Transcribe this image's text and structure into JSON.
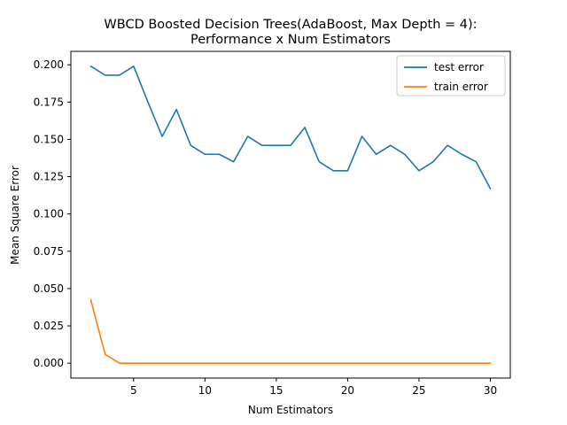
{
  "chart_data": {
    "type": "line",
    "title": "WBCD Boosted Decision Trees(AdaBoost, Max Depth = 4):",
    "subtitle": "Performance x Num Estimators",
    "xlabel": "Num Estimators",
    "ylabel": "Mean Square Error",
    "xlim": [
      0.6,
      31.4
    ],
    "ylim": [
      -0.01,
      0.209
    ],
    "xticks": [
      5,
      10,
      15,
      20,
      25,
      30
    ],
    "xtick_labels": [
      "5",
      "10",
      "15",
      "20",
      "25",
      "30"
    ],
    "yticks": [
      0.0,
      0.025,
      0.05,
      0.075,
      0.1,
      0.125,
      0.15,
      0.175,
      0.2
    ],
    "ytick_labels": [
      "0.000",
      "0.025",
      "0.050",
      "0.075",
      "0.100",
      "0.125",
      "0.150",
      "0.175",
      "0.200"
    ],
    "grid": false,
    "legend_position": "top-right",
    "x": [
      2,
      3,
      4,
      5,
      6,
      7,
      8,
      9,
      10,
      11,
      12,
      13,
      14,
      15,
      16,
      17,
      18,
      19,
      20,
      21,
      22,
      23,
      24,
      25,
      26,
      27,
      28,
      29,
      30
    ],
    "series": [
      {
        "name": "test error",
        "color": "#1f77b4",
        "values": [
          0.199,
          0.193,
          0.193,
          0.199,
          0.175,
          0.152,
          0.17,
          0.146,
          0.14,
          0.14,
          0.135,
          0.152,
          0.146,
          0.146,
          0.146,
          0.158,
          0.135,
          0.129,
          0.129,
          0.152,
          0.14,
          0.146,
          0.14,
          0.129,
          0.135,
          0.146,
          0.14,
          0.135,
          0.117
        ]
      },
      {
        "name": "train error",
        "color": "#ff7f0e",
        "values": [
          0.0423,
          0.0059,
          0.0,
          0.0,
          0.0,
          0.0,
          0.0,
          0.0,
          0.0,
          0.0,
          0.0,
          0.0,
          0.0,
          0.0,
          0.0,
          0.0,
          0.0,
          0.0,
          0.0,
          0.0,
          0.0,
          0.0,
          0.0,
          0.0,
          0.0,
          0.0,
          0.0,
          0.0,
          0.0
        ]
      }
    ]
  }
}
